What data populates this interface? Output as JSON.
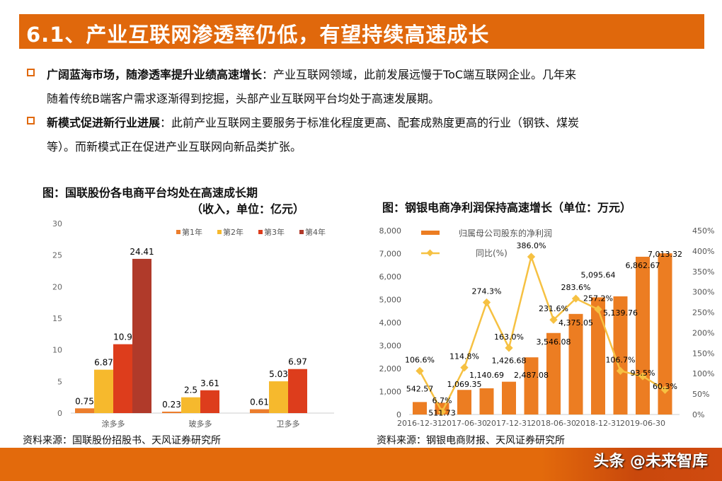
{
  "title": "6.1、产业互联网渗透率仍低，有望持续高速成长",
  "bullets": [
    {
      "bold": "广阔蓝海市场，随渗透率提升业绩高速增长",
      "text": "：产业互联网领域，此前发展远慢于ToC端互联网企业。几年来",
      "cont": "随着传统B端客户需求逐渐得到挖掘，头部产业互联网平台均处于高速发展期。"
    },
    {
      "bold": "新模式促进新行业进展",
      "text": "：此前产业互联网主要服务于标准化程度更高、配套成熟度更高的行业（钢铁、煤炭",
      "cont": "等）。而新模式正在促进产业互联网向新品类扩张。"
    }
  ],
  "left_title_1": "图：国联股份各电商平台均处在高速成长期",
  "left_title_2": "（收入，单位：亿元）",
  "right_title": "图：钢银电商净利润保持高速增长（单位：万元）",
  "left_source": "资料来源：国联股份招股书、天风证券研究所",
  "right_source": "资料来源：钢银电商财报、天风证券研究所",
  "watermark": "头条 @未来智库",
  "chart_data": [
    {
      "type": "bar",
      "categories": [
        "涂多多",
        "玻多多",
        "卫多多"
      ],
      "series": [
        {
          "name": "第1年",
          "color": "#ec7d2c",
          "values": [
            0.75,
            0.23,
            0.61
          ]
        },
        {
          "name": "第2年",
          "color": "#f6b92d",
          "values": [
            6.87,
            2.5,
            5.03
          ]
        },
        {
          "name": "第3年",
          "color": "#dd3d1c",
          "values": [
            10.9,
            3.61,
            6.97
          ]
        },
        {
          "name": "第4年",
          "color": "#b03a2a",
          "values": [
            24.41,
            null,
            null
          ]
        }
      ],
      "ylim": [
        0,
        30
      ],
      "yticks": [
        0,
        5,
        10,
        15,
        20,
        25,
        30
      ],
      "legend": "top-right"
    },
    {
      "type": "bar+line",
      "x_tick_labels": [
        "2016-12-31",
        "",
        "2017-06-30",
        "",
        "2017-12-31",
        "",
        "2018-06-30",
        "",
        "2018-12-31",
        "",
        "2019-06-30",
        ""
      ],
      "series": [
        {
          "name": "归属母公司股东的净利润",
          "type": "bar",
          "color": "#ec7d22",
          "axis": "left",
          "values": [
            542.57,
            511.73,
            1069.35,
            1140.69,
            1426.68,
            2487.08,
            3546.08,
            4375.05,
            5095.64,
            5139.76,
            6862.67,
            7013.32
          ],
          "labels": [
            "542.57",
            "511.73",
            "1,069.35",
            "1,140.69",
            "1,426.68",
            "2,487.08",
            "3,546.08",
            "4,375.05",
            "5,095.64",
            "5,139.76",
            "6,862.67",
            "7,013.32"
          ]
        },
        {
          "name": "同比(%)",
          "type": "line",
          "color": "#f6c142",
          "axis": "right",
          "values": [
            106.6,
            6.7,
            114.8,
            274.3,
            163.0,
            386.0,
            231.6,
            283.6,
            257.2,
            106.7,
            93.5,
            60.3
          ]
        }
      ],
      "ylim_left": [
        0,
        8000
      ],
      "yticks_left": [
        "0",
        "1,000",
        "2,000",
        "3,000",
        "4,000",
        "5,000",
        "6,000",
        "7,000",
        "8,000"
      ],
      "ylim_right": [
        0,
        450
      ],
      "yticks_right": [
        "0%",
        "50%",
        "100%",
        "150%",
        "200%",
        "250%",
        "300%",
        "350%",
        "400%",
        "450%"
      ],
      "legend": "top-left"
    }
  ]
}
